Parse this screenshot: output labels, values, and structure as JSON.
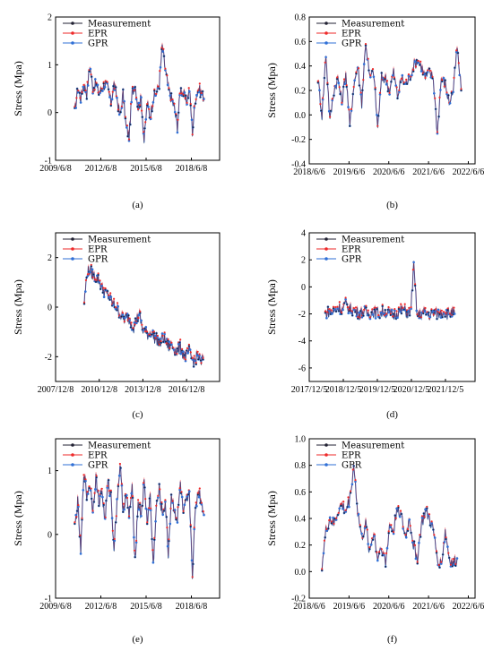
{
  "colors": {
    "measurement": "#222233",
    "epr": "#ee2a2a",
    "gpr": "#2f6fd6"
  },
  "chart_data": [
    {
      "panel": "a",
      "caption": "(a)",
      "type": "line",
      "ylabel": "Stress (Mpa)",
      "ylim": [
        -1,
        2
      ],
      "yticks": [
        "-1",
        "0",
        "1",
        "2"
      ],
      "xlim": [
        2009.43,
        2020.3
      ],
      "xticks": [
        {
          "v": 2009.43,
          "t": "2009/6/8"
        },
        {
          "v": 2012.43,
          "t": "2012/6/8"
        },
        {
          "v": 2015.43,
          "t": "2015/6/8"
        },
        {
          "v": 2018.43,
          "t": "2018/6/8"
        }
      ],
      "legend": [
        "Measurement",
        "EPR",
        "GPR"
      ],
      "series_x": [
        2010.7,
        2010.9,
        2011.1,
        2011.3,
        2011.5,
        2011.7,
        2011.9,
        2012.1,
        2012.3,
        2012.5,
        2012.7,
        2012.9,
        2013.1,
        2013.3,
        2013.5,
        2013.7,
        2013.9,
        2014.1,
        2014.3,
        2014.5,
        2014.7,
        2014.9,
        2015.1,
        2015.3,
        2015.5,
        2015.7,
        2015.9,
        2016.1,
        2016.3,
        2016.5,
        2016.7,
        2016.9,
        2017.1,
        2017.3,
        2017.5,
        2017.7,
        2017.9,
        2018.1,
        2018.3,
        2018.5,
        2018.7,
        2018.9,
        2019.1,
        2019.3
      ],
      "series": [
        {
          "name": "Measurement",
          "values": [
            0.0,
            0.5,
            0.3,
            0.6,
            0.4,
            1.0,
            0.5,
            0.6,
            0.4,
            0.5,
            0.6,
            0.5,
            0.2,
            0.6,
            0.3,
            -0.1,
            0.4,
            -0.3,
            -0.5,
            0.4,
            0.6,
            0.1,
            0.3,
            -0.6,
            0.2,
            -0.1,
            0.3,
            0.4,
            0.6,
            1.4,
            0.9,
            0.5,
            0.3,
            0.1,
            -0.3,
            0.5,
            0.4,
            0.2,
            0.5,
            -0.4,
            0.3,
            0.5,
            0.4,
            0.3
          ]
        }
      ]
    },
    {
      "panel": "b",
      "caption": "(b)",
      "type": "line",
      "ylabel": "Stress (Mpa)",
      "ylim": [
        -0.4,
        0.8
      ],
      "yticks": [
        "-0.4",
        "-0.2",
        "0.0",
        "0.2",
        "0.4",
        "0.6",
        "0.8"
      ],
      "xlim": [
        2018.43,
        2022.6
      ],
      "xticks": [
        {
          "v": 2018.43,
          "t": "2018/6/6"
        },
        {
          "v": 2019.43,
          "t": "2019/6/6"
        },
        {
          "v": 2020.43,
          "t": "2020/6/6"
        },
        {
          "v": 2021.43,
          "t": "2021/6/6"
        },
        {
          "v": 2022.43,
          "t": "2022/6/6"
        }
      ],
      "legend": [
        "Measurement",
        "EPR",
        "GPR"
      ],
      "series_x": [
        2018.65,
        2018.75,
        2018.85,
        2018.95,
        2019.05,
        2019.15,
        2019.25,
        2019.35,
        2019.45,
        2019.55,
        2019.65,
        2019.75,
        2019.85,
        2019.95,
        2020.05,
        2020.15,
        2020.25,
        2020.35,
        2020.45,
        2020.55,
        2020.65,
        2020.75,
        2020.85,
        2020.95,
        2021.05,
        2021.15,
        2021.25,
        2021.35,
        2021.45,
        2021.55,
        2021.65,
        2021.75,
        2021.85,
        2021.95,
        2022.05,
        2022.15,
        2022.25
      ],
      "series": [
        {
          "name": "Measurement",
          "values": [
            0.3,
            0.0,
            0.5,
            -0.05,
            0.2,
            0.3,
            0.1,
            0.35,
            -0.1,
            0.25,
            0.4,
            0.1,
            0.6,
            0.3,
            0.35,
            -0.1,
            0.3,
            0.3,
            0.2,
            0.35,
            0.15,
            0.3,
            0.25,
            0.3,
            0.4,
            0.45,
            0.4,
            0.3,
            0.35,
            0.3,
            -0.15,
            0.3,
            0.25,
            0.1,
            0.2,
            0.55,
            0.2
          ]
        }
      ]
    },
    {
      "panel": "c",
      "caption": "(c)",
      "type": "line",
      "ylabel": "Stress (Mpa)",
      "ylim": [
        -3,
        3
      ],
      "yticks": [
        "-2",
        "0",
        "2"
      ],
      "xlim": [
        2007.93,
        2019.2
      ],
      "xticks": [
        {
          "v": 2007.93,
          "t": "2007/12/8"
        },
        {
          "v": 2010.93,
          "t": "2010/12/8"
        },
        {
          "v": 2013.93,
          "t": "2013/12/8"
        },
        {
          "v": 2016.93,
          "t": "2016/12/8"
        }
      ],
      "legend": [
        "Measurement",
        "EPR",
        "GPR"
      ],
      "series_x": [
        2009.9,
        2010.1,
        2010.3,
        2010.5,
        2010.7,
        2010.9,
        2011.1,
        2011.3,
        2011.5,
        2011.7,
        2011.9,
        2012.1,
        2012.3,
        2012.5,
        2012.7,
        2012.9,
        2013.1,
        2013.3,
        2013.5,
        2013.7,
        2013.9,
        2014.1,
        2014.3,
        2014.5,
        2014.7,
        2014.9,
        2015.1,
        2015.3,
        2015.5,
        2015.7,
        2015.9,
        2016.1,
        2016.3,
        2016.5,
        2016.7,
        2016.9,
        2017.1,
        2017.3,
        2017.5,
        2017.7,
        2017.9,
        2018.1
      ],
      "series": [
        {
          "name": "Measurement",
          "values": [
            0.2,
            1.4,
            1.5,
            1.3,
            1.2,
            1.1,
            0.8,
            0.6,
            0.5,
            0.3,
            0.1,
            0.0,
            -0.2,
            -0.4,
            -0.5,
            -0.4,
            -0.6,
            -0.8,
            -0.5,
            -0.3,
            -0.9,
            -1.0,
            -1.1,
            -1.0,
            -1.2,
            -1.3,
            -1.5,
            -1.2,
            -1.4,
            -1.6,
            -1.5,
            -1.7,
            -1.8,
            -1.6,
            -1.9,
            -2.0,
            -1.8,
            -2.1,
            -2.2,
            -1.9,
            -2.3,
            -2.0
          ]
        }
      ]
    },
    {
      "panel": "d",
      "caption": "(d)",
      "type": "line",
      "ylabel": "Stress (Mpa)",
      "ylim": [
        -7,
        4
      ],
      "yticks": [
        "-6",
        "-4",
        "-2",
        "0",
        "2",
        "4"
      ],
      "xlim": [
        2017.93,
        2022.8
      ],
      "xticks": [
        {
          "v": 2017.93,
          "t": "2017/12/5"
        },
        {
          "v": 2018.93,
          "t": "2018/12/5"
        },
        {
          "v": 2019.93,
          "t": "2019/12/5"
        },
        {
          "v": 2020.93,
          "t": "2020/12/5"
        },
        {
          "v": 2021.93,
          "t": "2021/12/5"
        }
      ],
      "legend": [
        "Measurement",
        "EPR",
        "GPR"
      ],
      "series_x": [
        2018.4,
        2018.5,
        2018.6,
        2018.7,
        2018.8,
        2018.9,
        2019.0,
        2019.1,
        2019.2,
        2019.3,
        2019.4,
        2019.5,
        2019.6,
        2019.7,
        2019.8,
        2019.9,
        2020.0,
        2020.1,
        2020.2,
        2020.3,
        2020.4,
        2020.5,
        2020.6,
        2020.7,
        2020.8,
        2020.9,
        2021.0,
        2021.1,
        2021.2,
        2021.3,
        2021.4,
        2021.5,
        2021.6,
        2021.7,
        2021.8,
        2021.9,
        2022.0,
        2022.1,
        2022.2
      ],
      "series": [
        {
          "name": "Measurement",
          "values": [
            -2.0,
            -1.8,
            -1.9,
            -1.7,
            -1.5,
            -1.7,
            -1.3,
            -1.6,
            -1.7,
            -1.8,
            -2.0,
            -1.8,
            -1.9,
            -2.0,
            -1.8,
            -1.9,
            -2.0,
            -1.8,
            -1.9,
            -2.0,
            -2.1,
            -1.9,
            -1.8,
            -1.7,
            -1.9,
            -2.0,
            1.5,
            -2.2,
            -2.0,
            -1.9,
            -2.0,
            -2.1,
            -1.9,
            -2.0,
            -1.9,
            -1.8,
            -2.0,
            -1.9,
            -2.0
          ]
        }
      ]
    },
    {
      "panel": "e",
      "caption": "(e)",
      "type": "line",
      "ylabel": "Stress (Mpa)",
      "ylim": [
        -1,
        1.5
      ],
      "yticks": [
        "-1",
        "0",
        "1"
      ],
      "xlim": [
        2009.43,
        2020.3
      ],
      "xticks": [
        {
          "v": 2009.43,
          "t": "2009/6/8"
        },
        {
          "v": 2012.43,
          "t": "2012/6/8"
        },
        {
          "v": 2015.43,
          "t": "2015/6/8"
        },
        {
          "v": 2018.43,
          "t": "2018/6/8"
        }
      ],
      "legend": [
        "Measurement",
        "EPR",
        "GPR"
      ],
      "series_x": [
        2010.7,
        2010.9,
        2011.1,
        2011.3,
        2011.5,
        2011.7,
        2011.9,
        2012.1,
        2012.3,
        2012.5,
        2012.7,
        2012.9,
        2013.1,
        2013.3,
        2013.5,
        2013.7,
        2013.9,
        2014.1,
        2014.3,
        2014.5,
        2014.7,
        2014.9,
        2015.1,
        2015.3,
        2015.5,
        2015.7,
        2015.9,
        2016.1,
        2016.3,
        2016.5,
        2016.7,
        2016.9,
        2017.1,
        2017.3,
        2017.5,
        2017.7,
        2017.9,
        2018.1,
        2018.3,
        2018.5,
        2018.7,
        2018.9,
        2019.1,
        2019.3
      ],
      "series": [
        {
          "name": "Measurement",
          "values": [
            0.1,
            0.5,
            -0.3,
            1.0,
            0.6,
            0.8,
            0.4,
            0.9,
            0.5,
            0.7,
            0.2,
            0.8,
            0.6,
            -0.2,
            0.5,
            1.1,
            0.4,
            0.6,
            0.3,
            0.7,
            -0.4,
            0.5,
            0.3,
            0.8,
            0.2,
            0.6,
            -0.5,
            0.4,
            0.7,
            0.3,
            0.5,
            -0.3,
            0.6,
            0.4,
            0.2,
            0.8,
            0.3,
            0.5,
            0.6,
            -0.6,
            0.4,
            0.7,
            0.5,
            0.3
          ]
        }
      ]
    },
    {
      "panel": "f",
      "caption": "(f)",
      "type": "line",
      "ylabel": "Stress (Mpa)",
      "ylim": [
        -0.2,
        1.0
      ],
      "yticks": [
        "-0.2",
        "0.0",
        "0.2",
        "0.4",
        "0.6",
        "0.8",
        "1.0"
      ],
      "xlim": [
        2018.43,
        2022.6
      ],
      "xticks": [
        {
          "v": 2018.43,
          "t": "2018/6/6"
        },
        {
          "v": 2019.43,
          "t": "2019/6/6"
        },
        {
          "v": 2020.43,
          "t": "2020/6/6"
        },
        {
          "v": 2021.43,
          "t": "2021/6/6"
        },
        {
          "v": 2022.43,
          "t": "2022/6/6"
        }
      ],
      "legend": [
        "Measurement",
        "EPR",
        "GPR"
      ],
      "series_x": [
        2018.75,
        2018.85,
        2018.95,
        2019.05,
        2019.15,
        2019.25,
        2019.35,
        2019.45,
        2019.55,
        2019.65,
        2019.75,
        2019.85,
        2019.95,
        2020.05,
        2020.15,
        2020.25,
        2020.35,
        2020.45,
        2020.55,
        2020.65,
        2020.75,
        2020.85,
        2020.95,
        2021.05,
        2021.15,
        2021.25,
        2021.35,
        2021.45,
        2021.55,
        2021.65,
        2021.75,
        2021.85,
        2021.95,
        2022.05,
        2022.15
      ],
      "series": [
        {
          "name": "Measurement",
          "values": [
            0.05,
            0.3,
            0.4,
            0.35,
            0.45,
            0.5,
            0.45,
            0.55,
            0.8,
            0.45,
            0.25,
            0.35,
            0.15,
            0.3,
            0.1,
            0.2,
            0.05,
            0.35,
            0.3,
            0.5,
            0.4,
            0.25,
            0.4,
            0.2,
            0.1,
            0.35,
            0.45,
            0.4,
            0.3,
            0.1,
            0.05,
            0.3,
            0.1,
            0.05,
            0.1
          ]
        }
      ]
    }
  ]
}
